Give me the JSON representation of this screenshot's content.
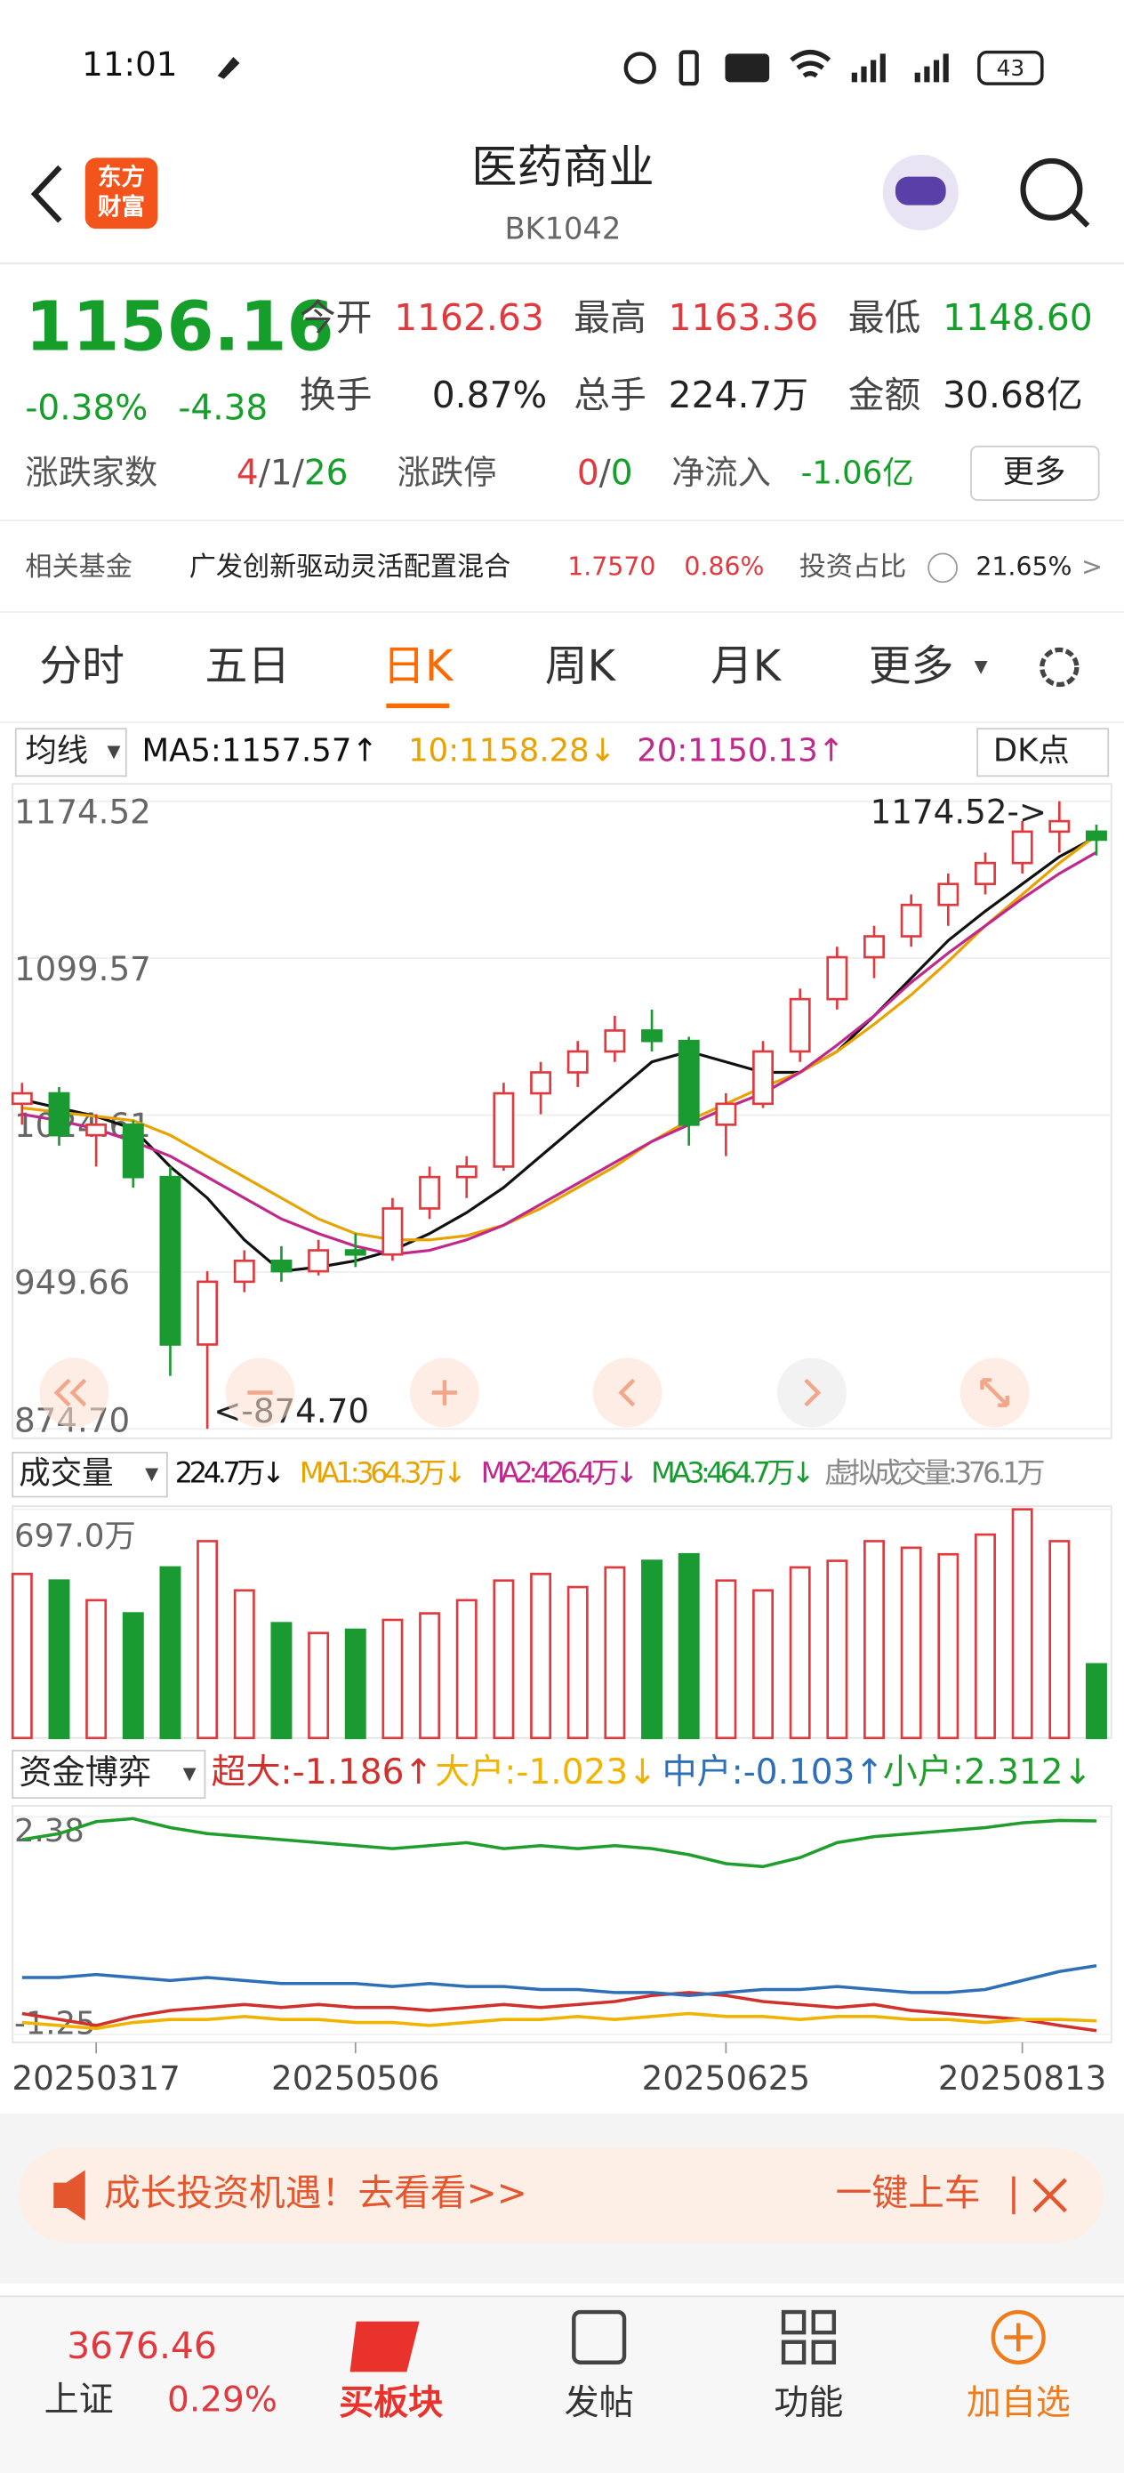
{
  "status": {
    "time": "11:01",
    "battery": "43"
  },
  "header": {
    "logo": [
      "东方",
      "财富"
    ],
    "title": "医药商业",
    "code": "BK1042"
  },
  "quote": {
    "price": "1156.16",
    "change_pct": "-0.38%",
    "change": "-4.38",
    "fields": [
      {
        "label": "今开",
        "value": "1162.63"
      },
      {
        "label": "最高",
        "value": "1163.36"
      },
      {
        "label": "最低",
        "value": "1148.60"
      },
      {
        "label": "换手",
        "value": "0.87%"
      },
      {
        "label": "总手",
        "value": "224.7万"
      },
      {
        "label": "金额",
        "value": "30.68亿"
      }
    ],
    "breadth_label": "涨跌家数",
    "breadth": [
      "4",
      "/",
      "1",
      "/",
      "26"
    ],
    "limit_label": "涨跌停",
    "limit": [
      "0",
      "/",
      "0"
    ],
    "inflow_label": "净流入",
    "inflow": "-1.06亿",
    "more": "更多"
  },
  "fund": {
    "label": "相关基金",
    "name": "广发创新驱动灵活配置混合",
    "nav": "1.7570",
    "pct": "0.86%",
    "ratio_label": "投资占比",
    "ratio": "21.65%",
    "arrow": ">"
  },
  "tabs": {
    "items": [
      "分时",
      "五日",
      "日K",
      "周K",
      "月K",
      "更多"
    ],
    "active": 2
  },
  "ma_legend": {
    "button": "均线",
    "items": [
      "MA5:1157.57↑",
      "10:1158.28↓",
      "20:1150.13↑"
    ],
    "dk": "DK点"
  },
  "volume_legend": {
    "button": "成交量",
    "items": [
      "224.7万↓",
      "MA1:364.3万↓",
      "MA2:426.4万↓",
      "MA3:464.7万↓",
      "虚拟成交量:376.1万"
    ]
  },
  "flow_legend": {
    "button": "资金博弈",
    "items": [
      "超大:-1.186↑",
      "大户:-1.023↓",
      "中户:-0.103↑",
      "小户:2.312↓"
    ]
  },
  "chart_data": [
    {
      "type": "candlestick",
      "up_color": "#e0393e",
      "down_color": "#1a9b32",
      "ylim": [
        874.7,
        1174.52
      ],
      "yticks": [
        1174.52,
        1099.57,
        1024.61,
        949.66,
        {
          "value": 874.7,
          "label": "874.70"
        }
      ],
      "annotations": [
        "<-874.70",
        "1174.52->"
      ],
      "open": [
        1030,
        1035,
        1015,
        1020,
        995,
        915,
        945,
        955,
        950,
        960,
        958,
        980,
        995,
        1000,
        1035,
        1045,
        1055,
        1065,
        1060,
        1020,
        1030,
        1055,
        1080,
        1100,
        1110,
        1125,
        1135,
        1145,
        1160,
        1160
      ],
      "high": [
        1040,
        1038,
        1025,
        1022,
        1000,
        950,
        960,
        962,
        965,
        968,
        985,
        1000,
        1005,
        1040,
        1050,
        1060,
        1072,
        1075,
        1062,
        1035,
        1060,
        1085,
        1105,
        1115,
        1130,
        1140,
        1150,
        1165,
        1174.52,
        1163.36
      ],
      "low": [
        1020,
        1010,
        1000,
        990,
        900,
        874.7,
        940,
        945,
        948,
        952,
        955,
        975,
        985,
        998,
        1025,
        1038,
        1050,
        1055,
        1010,
        1005,
        1028,
        1050,
        1075,
        1090,
        1105,
        1115,
        1130,
        1140,
        1150,
        1148.6
      ],
      "close": [
        1035,
        1015,
        1020,
        995,
        915,
        945,
        955,
        950,
        960,
        958,
        980,
        995,
        1000,
        1035,
        1045,
        1055,
        1065,
        1060,
        1020,
        1030,
        1055,
        1080,
        1100,
        1110,
        1125,
        1135,
        1145,
        1160,
        1165,
        1156.16
      ],
      "series": [
        {
          "color": "#111111",
          "values": [
            1032,
            1028,
            1024,
            1018,
            1000,
            985,
            965,
            950,
            952,
            955,
            960,
            968,
            978,
            990,
            1005,
            1020,
            1035,
            1050,
            1055,
            1050,
            1045,
            1045,
            1055,
            1072,
            1090,
            1108,
            1122,
            1135,
            1148,
            1157.57
          ]
        },
        {
          "color": "#e8a300",
          "values": [
            1028,
            1026,
            1024,
            1022,
            1015,
            1005,
            995,
            985,
            975,
            968,
            965,
            965,
            967,
            972,
            980,
            990,
            1000,
            1012,
            1022,
            1030,
            1038,
            1045,
            1055,
            1068,
            1082,
            1098,
            1115,
            1130,
            1145,
            1158.28
          ]
        },
        {
          "color": "#c0288c",
          "values": [
            1025,
            1022,
            1018,
            1012,
            1005,
            995,
            985,
            975,
            968,
            962,
            958,
            960,
            965,
            972,
            982,
            992,
            1002,
            1012,
            1020,
            1028,
            1035,
            1045,
            1058,
            1072,
            1088,
            1102,
            1115,
            1128,
            1140,
            1150.13
          ]
        }
      ]
    },
    {
      "type": "bar",
      "ylim": [
        0,
        697
      ],
      "yticks": [
        {
          "value": 697,
          "label": "697.0万"
        }
      ],
      "values": [
        500,
        480,
        420,
        380,
        520,
        600,
        450,
        350,
        320,
        330,
        360,
        380,
        420,
        480,
        500,
        460,
        520,
        540,
        560,
        480,
        450,
        520,
        540,
        600,
        580,
        560,
        620,
        697,
        600,
        224.7
      ]
    },
    {
      "type": "line",
      "ylim": [
        -1.25,
        2.38
      ],
      "yticks": [
        2.38,
        -1.25
      ],
      "xticks": [
        {
          "value": 2,
          "label": "20250317"
        },
        {
          "value": 9,
          "label": "20250506"
        },
        {
          "value": 19,
          "label": "20250625"
        },
        {
          "value": 27,
          "label": "20250813"
        }
      ],
      "series": [
        {
          "color": "#d0312d",
          "values": [
            -0.9,
            -1.0,
            -1.1,
            -0.95,
            -0.85,
            -0.8,
            -0.75,
            -0.8,
            -0.75,
            -0.8,
            -0.8,
            -0.85,
            -0.8,
            -0.75,
            -0.8,
            -0.75,
            -0.7,
            -0.6,
            -0.55,
            -0.6,
            -0.7,
            -0.75,
            -0.8,
            -0.75,
            -0.85,
            -0.9,
            -0.95,
            -1.0,
            -1.1,
            -1.186
          ]
        },
        {
          "color": "#f0b400",
          "values": [
            -1.05,
            -1.1,
            -1.15,
            -1.05,
            -1.0,
            -1.0,
            -0.95,
            -1.0,
            -1.0,
            -1.05,
            -1.05,
            -1.1,
            -1.05,
            -1.0,
            -1.0,
            -0.95,
            -1.0,
            -0.95,
            -0.9,
            -0.95,
            -0.95,
            -1.0,
            -0.95,
            -0.95,
            -1.0,
            -1.0,
            -1.05,
            -1.0,
            -1.0,
            -1.023
          ]
        },
        {
          "color": "#2f6fb8",
          "values": [
            -0.3,
            -0.3,
            -0.25,
            -0.3,
            -0.35,
            -0.3,
            -0.35,
            -0.4,
            -0.4,
            -0.4,
            -0.45,
            -0.4,
            -0.45,
            -0.45,
            -0.5,
            -0.5,
            -0.55,
            -0.55,
            -0.6,
            -0.55,
            -0.5,
            -0.5,
            -0.45,
            -0.5,
            -0.55,
            -0.55,
            -0.5,
            -0.35,
            -0.2,
            -0.103
          ]
        },
        {
          "color": "#1f9e2c",
          "values": [
            2.0,
            2.1,
            2.3,
            2.35,
            2.2,
            2.1,
            2.05,
            2.0,
            1.95,
            1.9,
            1.85,
            1.9,
            1.95,
            1.85,
            1.9,
            1.85,
            1.9,
            1.85,
            1.75,
            1.6,
            1.55,
            1.7,
            1.95,
            2.05,
            2.1,
            2.15,
            2.2,
            2.28,
            2.32,
            2.312
          ]
        }
      ]
    }
  ],
  "banner": {
    "text": "成长投资机遇！去看看>>",
    "action": "一键上车"
  },
  "bottom": {
    "index_value": "3676.46",
    "index_name": "上证",
    "index_pct": "0.29%",
    "items": [
      "买板块",
      "发帖",
      "功能",
      "加自选"
    ]
  }
}
